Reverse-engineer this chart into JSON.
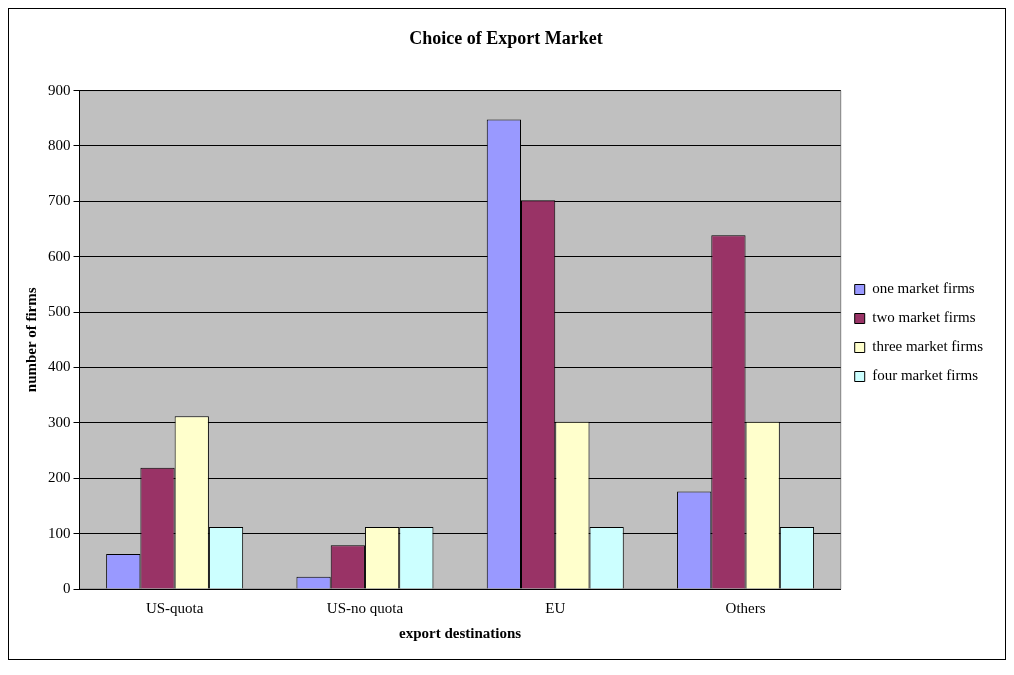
{
  "chart_data": {
    "type": "bar",
    "title": "Choice of Export Market",
    "xlabel": "export destinations",
    "ylabel": "number of firms",
    "categories": [
      "US-quota",
      "US-no quota",
      "EU",
      "Others"
    ],
    "series": [
      {
        "name": "one market firms",
        "color": "#9999ff",
        "values": [
          63,
          22,
          848,
          176
        ]
      },
      {
        "name": "two market firms",
        "color": "#993366",
        "values": [
          219,
          79,
          702,
          639
        ]
      },
      {
        "name": "three market firms",
        "color": "#ffffcc",
        "values": [
          312,
          112,
          302,
          302
        ]
      },
      {
        "name": "four market firms",
        "color": "#ccffff",
        "values": [
          112,
          112,
          112,
          112
        ]
      }
    ],
    "ylim": [
      0,
      900
    ],
    "yticks": [
      0,
      100,
      200,
      300,
      400,
      500,
      600,
      700,
      800,
      900
    ],
    "grid": "y",
    "legend": "right"
  }
}
